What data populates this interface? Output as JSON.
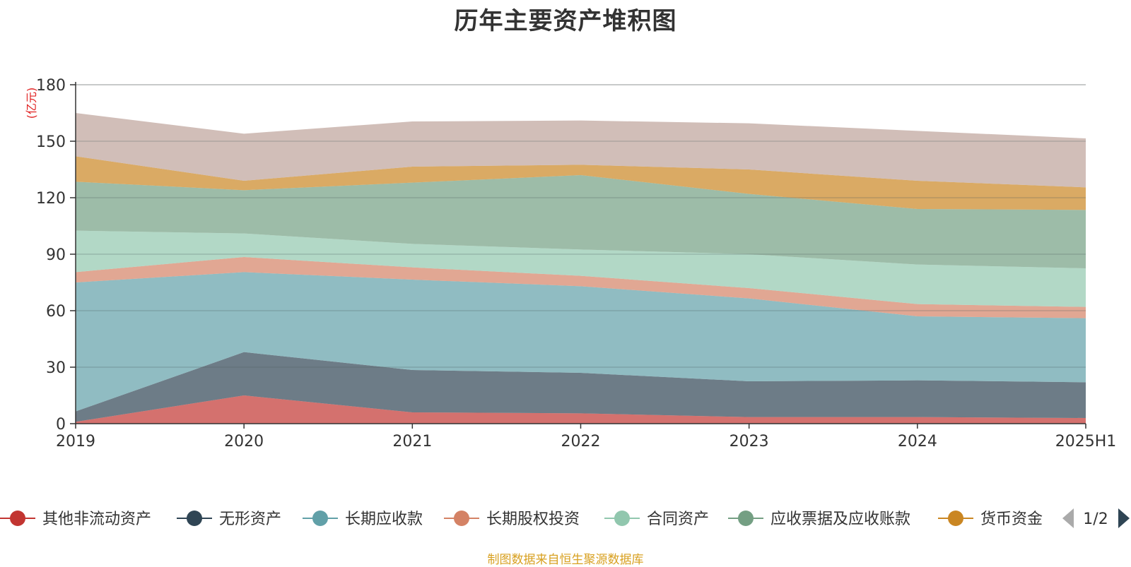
{
  "chart_data": {
    "type": "area",
    "title": "历年主要资产堆积图",
    "unit_label": "(亿元)",
    "x": [
      "2019",
      "2020",
      "2021",
      "2022",
      "2023",
      "2024",
      "2025H1"
    ],
    "ylim": [
      0,
      180
    ],
    "yticks": [
      0,
      30,
      60,
      90,
      120,
      150,
      180
    ],
    "stacked": true,
    "grid": true,
    "legend_position": "bottom",
    "legend_page": "1/2",
    "series": [
      {
        "name": "其他非流动资产",
        "color": "#c23531",
        "values": [
          1,
          15,
          6,
          5.5,
          3.5,
          3.5,
          3
        ]
      },
      {
        "name": "无形资产",
        "color": "#2f4554",
        "values": [
          5.5,
          23,
          22.5,
          21.5,
          19,
          19.5,
          19
        ]
      },
      {
        "name": "长期应收款",
        "color": "#61a0a8",
        "values": [
          68.5,
          42.5,
          48,
          46,
          44,
          34,
          34
        ]
      },
      {
        "name": "长期股权投资",
        "color": "#d48265",
        "values": [
          5.5,
          8,
          6.5,
          5.5,
          5.5,
          6.5,
          6
        ]
      },
      {
        "name": "合同资产",
        "color": "#91c7ae",
        "values": [
          22,
          12.5,
          12.5,
          14,
          18,
          21,
          20.5
        ]
      },
      {
        "name": "应收票据及应收账款",
        "color": "#749f83",
        "values": [
          26,
          23,
          32.5,
          39.5,
          32,
          29.5,
          31
        ]
      },
      {
        "name": "货币资金",
        "color": "#ca8622",
        "values": [
          13.5,
          5,
          8.5,
          5.5,
          13,
          15,
          12
        ]
      },
      {
        "name": "",
        "color": "#bda29a",
        "values": [
          23,
          25,
          24,
          23.5,
          24.5,
          26.5,
          26
        ]
      }
    ]
  },
  "legend_visible": [
    {
      "name": "其他非流动资产",
      "color": "#c23531"
    },
    {
      "name": "无形资产",
      "color": "#2f4554"
    },
    {
      "name": "长期应收款",
      "color": "#61a0a8"
    },
    {
      "name": "长期股权投资",
      "color": "#d48265"
    },
    {
      "name": "合同资产",
      "color": "#91c7ae"
    },
    {
      "name": "应收票据及应收账款",
      "color": "#749f83"
    },
    {
      "name": "货币资金",
      "color": "#ca8622"
    }
  ],
  "source_note": "制图数据来自恒生聚源数据库"
}
